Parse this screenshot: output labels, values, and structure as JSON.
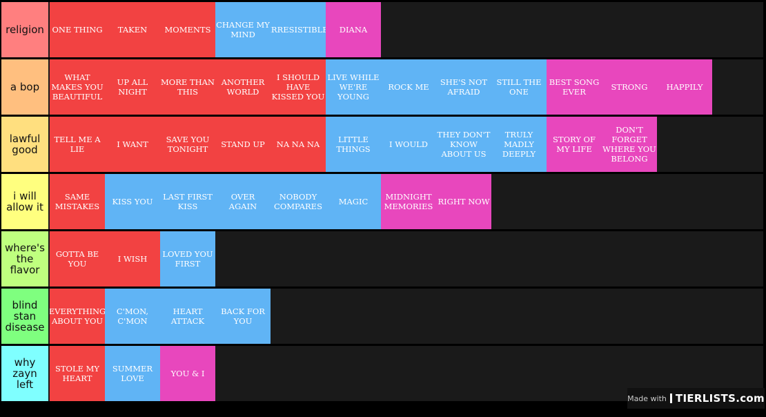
{
  "colors": {
    "red": "#f24242",
    "blue": "#60b4f5",
    "pink": "#e847bd",
    "empty": "#1a1a1a"
  },
  "tiers": [
    {
      "label": "religion",
      "color": "#ff7f7f",
      "items": [
        {
          "text": "ONE THING",
          "color": "red"
        },
        {
          "text": "TAKEN",
          "color": "red"
        },
        {
          "text": "MOMENTS",
          "color": "red"
        },
        {
          "text": "CHANGE MY MIND",
          "color": "blue"
        },
        {
          "text": "IRRESISTIBLE",
          "color": "blue"
        },
        {
          "text": "DIANA",
          "color": "pink"
        }
      ]
    },
    {
      "label": "a bop",
      "color": "#ffbf7f",
      "items": [
        {
          "text": "WHAT MAKES YOU BEAUTIFUL",
          "color": "red"
        },
        {
          "text": "UP ALL NIGHT",
          "color": "red"
        },
        {
          "text": "MORE THAN THIS",
          "color": "red"
        },
        {
          "text": "ANOTHER WORLD",
          "color": "red"
        },
        {
          "text": "I SHOULD HAVE KISSED YOU",
          "color": "red"
        },
        {
          "text": "LIVE WHILE WE'RE YOUNG",
          "color": "blue"
        },
        {
          "text": "ROCK ME",
          "color": "blue"
        },
        {
          "text": "SHE'S NOT AFRAID",
          "color": "blue"
        },
        {
          "text": "STILL THE ONE",
          "color": "blue"
        },
        {
          "text": "BEST SONG EVER",
          "color": "pink"
        },
        {
          "text": "STRONG",
          "color": "pink"
        },
        {
          "text": "HAPPILY",
          "color": "pink"
        }
      ]
    },
    {
      "label": "lawful good",
      "color": "#ffdf7f",
      "items": [
        {
          "text": "TELL ME A LIE",
          "color": "red"
        },
        {
          "text": "I WANT",
          "color": "red"
        },
        {
          "text": "SAVE YOU TONIGHT",
          "color": "red"
        },
        {
          "text": "STAND UP",
          "color": "red"
        },
        {
          "text": "NA NA NA",
          "color": "red"
        },
        {
          "text": "LITTLE THINGS",
          "color": "blue"
        },
        {
          "text": "I WOULD",
          "color": "blue"
        },
        {
          "text": "THEY DON'T KNOW ABOUT US",
          "color": "blue"
        },
        {
          "text": "TRULY MADLY DEEPLY",
          "color": "blue"
        },
        {
          "text": "STORY OF MY LIFE",
          "color": "pink"
        },
        {
          "text": "DON'T FORGET WHERE YOU BELONG",
          "color": "pink"
        }
      ]
    },
    {
      "label": "i will allow it",
      "color": "#ffff7f",
      "items": [
        {
          "text": "SAME MISTAKES",
          "color": "red"
        },
        {
          "text": "KISS YOU",
          "color": "blue"
        },
        {
          "text": "LAST FIRST KISS",
          "color": "blue"
        },
        {
          "text": "OVER AGAIN",
          "color": "blue"
        },
        {
          "text": "NOBODY COMPARES",
          "color": "blue"
        },
        {
          "text": "MAGIC",
          "color": "blue"
        },
        {
          "text": "MIDNIGHT MEMORIES",
          "color": "pink"
        },
        {
          "text": "RIGHT NOW",
          "color": "pink"
        }
      ]
    },
    {
      "label": "where's the flavor",
      "color": "#bfff7f",
      "items": [
        {
          "text": "GOTTA BE YOU",
          "color": "red"
        },
        {
          "text": "I WISH",
          "color": "red"
        },
        {
          "text": "LOVED YOU FIRST",
          "color": "blue"
        }
      ]
    },
    {
      "label": "blind stan disease",
      "color": "#7fff7f",
      "items": [
        {
          "text": "EVERYTHING ABOUT YOU",
          "color": "red"
        },
        {
          "text": "C'MON, C'MON",
          "color": "blue"
        },
        {
          "text": "HEART ATTACK",
          "color": "blue"
        },
        {
          "text": "BACK FOR YOU",
          "color": "blue"
        }
      ]
    },
    {
      "label": "why zayn left",
      "color": "#7fffff",
      "items": [
        {
          "text": "STOLE MY HEART",
          "color": "red"
        },
        {
          "text": "SUMMER LOVE",
          "color": "blue"
        },
        {
          "text": "YOU & I",
          "color": "pink"
        }
      ]
    }
  ],
  "watermark": {
    "made_with": "Made with",
    "brand": "TIERLISTS.com"
  }
}
